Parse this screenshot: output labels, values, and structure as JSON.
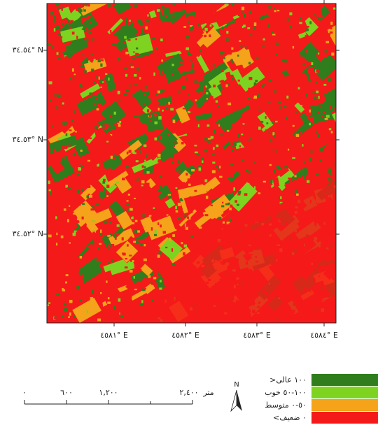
{
  "map": {
    "y_labels": [
      "٣٤.٥٤° N",
      "٣٤.٥٣° N",
      "٣٤.٥٢° N"
    ],
    "x_labels": [
      "٤٥٨١° E",
      "٤٥٨٢° E",
      "٤٥٨٣° E",
      "٤٥٨٤° E"
    ]
  },
  "scale_bar": {
    "labels": [
      "٠",
      "٦٠٠",
      "١,٢٠٠",
      "٢,٤٠٠"
    ],
    "unit": "متر"
  },
  "north": "N",
  "legend": {
    "items": [
      {
        "label": ">١٠٠ عالی",
        "color": "#2f7d1c"
      },
      {
        "label": "١٠٠-٥٠ خوب",
        "color": "#7ed321"
      },
      {
        "label": "٥٠-٠ متوسط",
        "color": "#f5a31a"
      },
      {
        "label": "<٠ ضعیف",
        "color": "#f41a1a"
      }
    ]
  }
}
